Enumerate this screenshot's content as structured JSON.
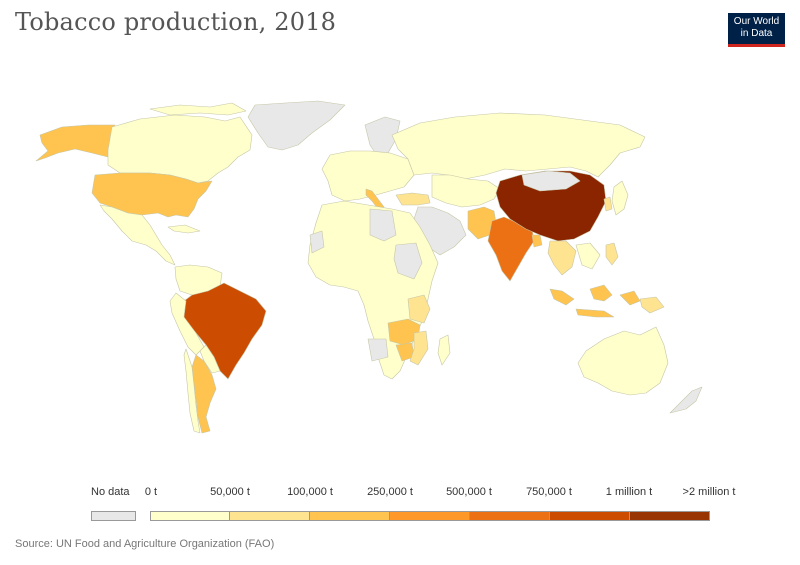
{
  "title": "Tobacco production, 2018",
  "logo": {
    "line1": "Our World",
    "line2": "in Data"
  },
  "map_data": {
    "type": "choropleth",
    "variable": "Tobacco production",
    "year": 2018,
    "regions": [
      {
        "name": "China",
        "bin": 8
      },
      {
        "name": "Brazil",
        "bin": 6
      },
      {
        "name": "India",
        "bin": 5
      },
      {
        "name": "United States",
        "bin": 3
      },
      {
        "name": "Indonesia",
        "bin": 3
      },
      {
        "name": "Zimbabwe",
        "bin": 3
      },
      {
        "name": "Pakistan",
        "bin": 3
      },
      {
        "name": "Argentina",
        "bin": 3
      },
      {
        "name": "Alaska",
        "bin": 3
      },
      {
        "name": "Malawi",
        "bin": 2
      },
      {
        "name": "Mozambique",
        "bin": 2
      },
      {
        "name": "Tanzania",
        "bin": 2
      },
      {
        "name": "Zambia",
        "bin": 2
      },
      {
        "name": "Turkey",
        "bin": 2
      },
      {
        "name": "Thailand",
        "bin": 2
      },
      {
        "name": "Italy",
        "bin": 2
      },
      {
        "name": "Bangladesh",
        "bin": 2
      }
    ]
  },
  "legend": {
    "no_data_label": "No data",
    "labels": [
      "0 t",
      "50,000 t",
      "100,000 t",
      "250,000 t",
      "500,000 t",
      "750,000 t",
      "1 million t",
      ">2 million t"
    ],
    "colors": {
      "no_data": "#e8e8e8",
      "bins": [
        "#ffffcc",
        "#fee391",
        "#fec44f",
        "#fe9929",
        "#ec7014",
        "#cc4c02",
        "#993404",
        "#8b2500"
      ]
    }
  },
  "source": "Source: UN Food and Agriculture Organization (FAO)"
}
